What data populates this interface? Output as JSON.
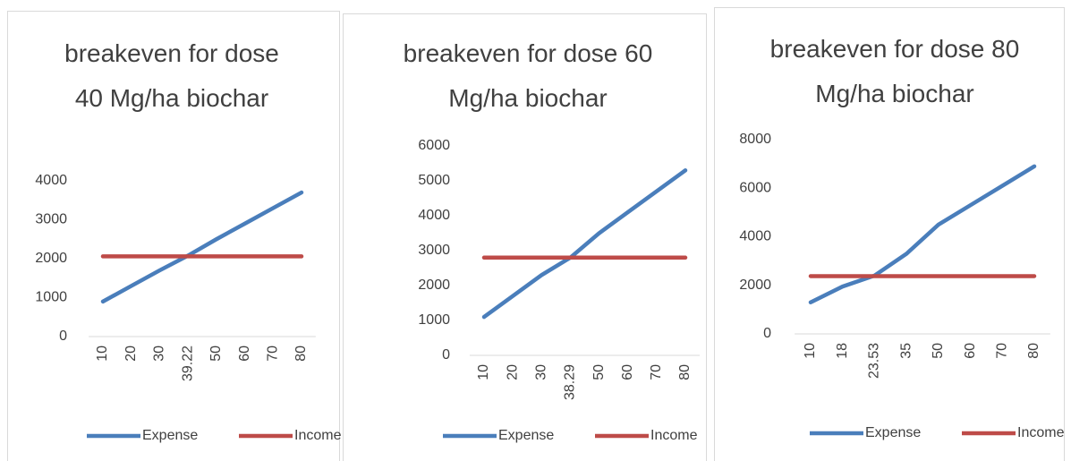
{
  "chart_data": [
    {
      "type": "line",
      "title": "breakeven for dose 40 Mg/ha biochar",
      "categories": [
        "10",
        "20",
        "30",
        "39.22",
        "50",
        "60",
        "70",
        "80"
      ],
      "series": [
        {
          "name": "Expense",
          "color": "#4a7ebb",
          "values": [
            900,
            1300,
            1700,
            2080,
            2500,
            2900,
            3300,
            3700
          ]
        },
        {
          "name": "Income",
          "color": "#be4b48",
          "values": [
            2060,
            2060,
            2060,
            2060,
            2060,
            2060,
            2060,
            2060
          ]
        }
      ],
      "ylim": [
        0,
        4000
      ],
      "yticks": [
        0,
        1000,
        2000,
        3000,
        4000
      ],
      "legend": "bottom"
    },
    {
      "type": "line",
      "title": "breakeven for dose 60 Mg/ha biochar",
      "categories": [
        "10",
        "20",
        "30",
        "38.29",
        "50",
        "60",
        "70",
        "80"
      ],
      "series": [
        {
          "name": "Expense",
          "color": "#4a7ebb",
          "values": [
            1100,
            1700,
            2300,
            2800,
            3500,
            4100,
            4700,
            5300
          ]
        },
        {
          "name": "Income",
          "color": "#be4b48",
          "values": [
            2800,
            2800,
            2800,
            2800,
            2800,
            2800,
            2800,
            2800
          ]
        }
      ],
      "ylim": [
        0,
        6000
      ],
      "yticks": [
        0,
        1000,
        2000,
        3000,
        4000,
        5000,
        6000
      ],
      "legend": "bottom"
    },
    {
      "type": "line",
      "title": "breakeven for dose 80 Mg/ha biochar",
      "categories": [
        "10",
        "18",
        "23.53",
        "35",
        "50",
        "60",
        "70",
        "80"
      ],
      "series": [
        {
          "name": "Expense",
          "color": "#4a7ebb",
          "values": [
            1300,
            1950,
            2400,
            3300,
            4500,
            5300,
            6100,
            6900
          ]
        },
        {
          "name": "Income",
          "color": "#be4b48",
          "values": [
            2380,
            2380,
            2380,
            2380,
            2380,
            2380,
            2380,
            2380
          ]
        }
      ],
      "ylim": [
        0,
        8000
      ],
      "yticks": [
        0,
        2000,
        4000,
        6000,
        8000
      ],
      "legend": "bottom"
    }
  ]
}
